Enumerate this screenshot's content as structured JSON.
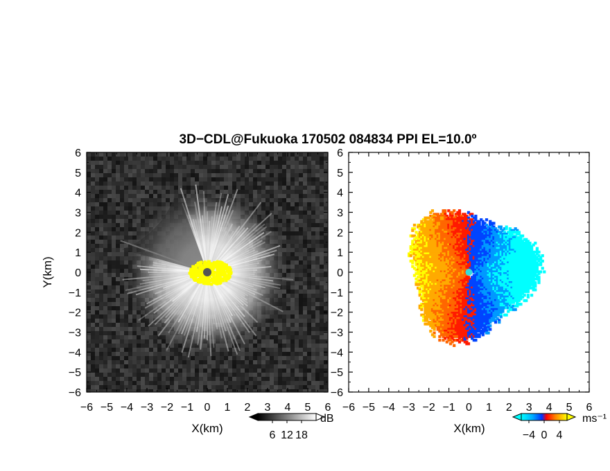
{
  "title": "3D−CDL@Fukuoka 170502 084834 PPI EL=10.0º",
  "chart_data": [
    {
      "type": "heatmap",
      "panel": "left",
      "quantity": "reflectivity / SNR",
      "xlabel": "X(km)",
      "ylabel": "Y(km)",
      "xlim": [
        -6,
        6
      ],
      "ylim": [
        -6,
        6
      ],
      "xticks": [
        "−6",
        "−5",
        "−4",
        "−3",
        "−2",
        "−1",
        "0",
        "1",
        "2",
        "3",
        "4",
        "5",
        "6"
      ],
      "yticks": [
        "6",
        "5",
        "4",
        "3",
        "2",
        "1",
        "0",
        "−1",
        "−2",
        "−3",
        "−4",
        "−5",
        "−6"
      ],
      "echo_radius_km": 4.0,
      "blocked_sector_deg": [
        110,
        165
      ],
      "clutter_color": "#ffff00",
      "colorbar": {
        "unit": "dB",
        "ticks": [
          "6",
          "12",
          "18"
        ],
        "range": [
          0,
          24
        ],
        "colors": [
          "#000000",
          "#ffffff"
        ]
      },
      "grid": false
    },
    {
      "type": "heatmap",
      "panel": "right",
      "quantity": "Doppler velocity",
      "xlabel": "X(km)",
      "ylabel": "",
      "xlim": [
        -6,
        6
      ],
      "ylim": [
        -6,
        6
      ],
      "xticks": [
        "−6",
        "−5",
        "−4",
        "−3",
        "−2",
        "−1",
        "0",
        "1",
        "2",
        "3",
        "4",
        "5",
        "6"
      ],
      "yticks": [
        "6",
        "5",
        "4",
        "3",
        "2",
        "1",
        "0",
        "−1",
        "−2",
        "−3",
        "−4",
        "−5",
        "−6"
      ],
      "echo_radius_km": 3.6,
      "flow_direction": "toward +X (approaching on west side, receding on east side)",
      "colorbar": {
        "unit": "ms⁻¹",
        "ticks": [
          "−4",
          "0",
          "4"
        ],
        "range": [
          -6,
          6
        ],
        "colors": [
          "#00ffff",
          "#0055ff",
          "#ff0000",
          "#ffaa00",
          "#ffff00"
        ]
      },
      "grid": false
    }
  ]
}
